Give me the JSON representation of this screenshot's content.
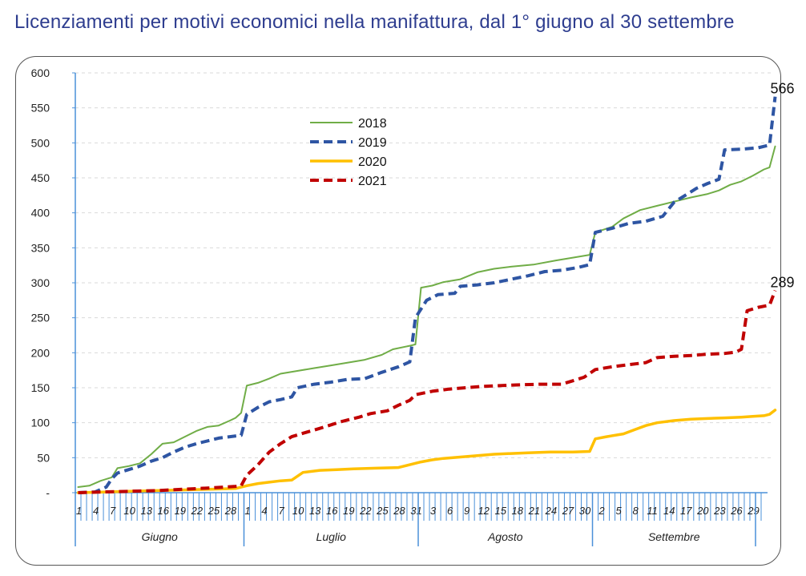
{
  "title": "Licenziamenti per motivi economici nella manifattura, dal 1° giugno al 30 settembre",
  "chart_data": {
    "type": "line",
    "title": "Licenziamenti per motivi economici nella manifattura, dal 1° giugno al 30 settembre",
    "xlabel": "",
    "ylabel": "",
    "ylim": [
      0,
      600
    ],
    "grid": true,
    "legend_position": "top-center",
    "y_ticks": [
      "-",
      "50",
      "100",
      "150",
      "200",
      "250",
      "300",
      "350",
      "400",
      "450",
      "500",
      "550",
      "600"
    ],
    "months": [
      {
        "name": "Giugno",
        "days": [
          "1",
          "4",
          "7",
          "10",
          "13",
          "16",
          "19",
          "22",
          "25",
          "28"
        ],
        "start_day": 1,
        "length": 30
      },
      {
        "name": "Luglio",
        "days": [
          "1",
          "4",
          "7",
          "10",
          "13",
          "16",
          "19",
          "22",
          "25",
          "28",
          "31"
        ],
        "start_day": 31,
        "length": 31
      },
      {
        "name": "Agosto",
        "days": [
          "3",
          "6",
          "9",
          "12",
          "15",
          "18",
          "21",
          "24",
          "27",
          "30"
        ],
        "start_day": 62,
        "length": 31
      },
      {
        "name": "Settembre",
        "days": [
          "2",
          "5",
          "8",
          "11",
          "14",
          "17",
          "20",
          "23",
          "26",
          "29"
        ],
        "start_day": 93,
        "length": 29
      }
    ],
    "series": [
      {
        "name": "2018",
        "color": "#70ad47",
        "dash": "solid",
        "points": [
          [
            1,
            8
          ],
          [
            3,
            10
          ],
          [
            5,
            17
          ],
          [
            7,
            22
          ],
          [
            8,
            35
          ],
          [
            10,
            38
          ],
          [
            12,
            42
          ],
          [
            14,
            55
          ],
          [
            16,
            70
          ],
          [
            18,
            72
          ],
          [
            20,
            80
          ],
          [
            22,
            88
          ],
          [
            24,
            94
          ],
          [
            26,
            96
          ],
          [
            28,
            103
          ],
          [
            29,
            107
          ],
          [
            30,
            114
          ],
          [
            31,
            153
          ],
          [
            33,
            157
          ],
          [
            35,
            163
          ],
          [
            37,
            170
          ],
          [
            40,
            174
          ],
          [
            43,
            178
          ],
          [
            46,
            182
          ],
          [
            49,
            186
          ],
          [
            52,
            190
          ],
          [
            55,
            197
          ],
          [
            57,
            205
          ],
          [
            60,
            210
          ],
          [
            61,
            212
          ],
          [
            62,
            293
          ],
          [
            64,
            296
          ],
          [
            66,
            301
          ],
          [
            69,
            305
          ],
          [
            72,
            315
          ],
          [
            75,
            320
          ],
          [
            78,
            323
          ],
          [
            82,
            326
          ],
          [
            86,
            332
          ],
          [
            89,
            336
          ],
          [
            92,
            340
          ],
          [
            93,
            372
          ],
          [
            96,
            380
          ],
          [
            98,
            392
          ],
          [
            101,
            404
          ],
          [
            104,
            410
          ],
          [
            107,
            416
          ],
          [
            110,
            422
          ],
          [
            113,
            427
          ],
          [
            115,
            432
          ],
          [
            117,
            440
          ],
          [
            119,
            445
          ],
          [
            121,
            453
          ],
          [
            123,
            462
          ],
          [
            124,
            465
          ],
          [
            125,
            495
          ]
        ]
      },
      {
        "name": "2019",
        "color": "#2e55a3",
        "dash": "dashed",
        "points": [
          [
            1,
            0
          ],
          [
            4,
            1
          ],
          [
            6,
            8
          ],
          [
            7,
            20
          ],
          [
            8,
            28
          ],
          [
            10,
            33
          ],
          [
            12,
            38
          ],
          [
            14,
            45
          ],
          [
            16,
            50
          ],
          [
            18,
            58
          ],
          [
            20,
            65
          ],
          [
            22,
            70
          ],
          [
            24,
            74
          ],
          [
            26,
            78
          ],
          [
            28,
            80
          ],
          [
            30,
            82
          ],
          [
            31,
            112
          ],
          [
            33,
            122
          ],
          [
            35,
            130
          ],
          [
            37,
            133
          ],
          [
            39,
            137
          ],
          [
            40,
            150
          ],
          [
            43,
            155
          ],
          [
            46,
            158
          ],
          [
            49,
            162
          ],
          [
            52,
            163
          ],
          [
            55,
            172
          ],
          [
            58,
            180
          ],
          [
            60,
            187
          ],
          [
            61,
            250
          ],
          [
            63,
            275
          ],
          [
            65,
            283
          ],
          [
            68,
            285
          ],
          [
            69,
            295
          ],
          [
            72,
            297
          ],
          [
            75,
            300
          ],
          [
            78,
            305
          ],
          [
            81,
            310
          ],
          [
            84,
            316
          ],
          [
            87,
            318
          ],
          [
            90,
            322
          ],
          [
            92,
            326
          ],
          [
            93,
            372
          ],
          [
            96,
            378
          ],
          [
            99,
            385
          ],
          [
            102,
            388
          ],
          [
            105,
            395
          ],
          [
            107,
            415
          ],
          [
            109,
            425
          ],
          [
            111,
            435
          ],
          [
            113,
            442
          ],
          [
            115,
            448
          ],
          [
            116,
            490
          ],
          [
            119,
            491
          ],
          [
            122,
            493
          ],
          [
            124,
            497
          ],
          [
            125,
            566
          ]
        ]
      },
      {
        "name": "2020",
        "color": "#ffc000",
        "dash": "solid",
        "points": [
          [
            1,
            0
          ],
          [
            6,
            1
          ],
          [
            10,
            2
          ],
          [
            15,
            3
          ],
          [
            20,
            4
          ],
          [
            25,
            5
          ],
          [
            29,
            6
          ],
          [
            31,
            10
          ],
          [
            33,
            13
          ],
          [
            35,
            15
          ],
          [
            37,
            17
          ],
          [
            39,
            18
          ],
          [
            41,
            29
          ],
          [
            44,
            32
          ],
          [
            47,
            33
          ],
          [
            50,
            34
          ],
          [
            54,
            35
          ],
          [
            58,
            36
          ],
          [
            60,
            40
          ],
          [
            62,
            44
          ],
          [
            64,
            47
          ],
          [
            66,
            49
          ],
          [
            69,
            51
          ],
          [
            72,
            53
          ],
          [
            75,
            55
          ],
          [
            78,
            56
          ],
          [
            81,
            57
          ],
          [
            85,
            58
          ],
          [
            89,
            58
          ],
          [
            92,
            59
          ],
          [
            93,
            77
          ],
          [
            95,
            80
          ],
          [
            98,
            84
          ],
          [
            100,
            90
          ],
          [
            102,
            96
          ],
          [
            104,
            100
          ],
          [
            107,
            103
          ],
          [
            110,
            105
          ],
          [
            113,
            106
          ],
          [
            116,
            107
          ],
          [
            119,
            108
          ],
          [
            121,
            109
          ],
          [
            123,
            110
          ],
          [
            124,
            112
          ],
          [
            125,
            118
          ]
        ]
      },
      {
        "name": "2021",
        "color": "#c00000",
        "dash": "dashed",
        "points": [
          [
            1,
            0
          ],
          [
            5,
            1
          ],
          [
            10,
            2
          ],
          [
            15,
            3
          ],
          [
            20,
            5
          ],
          [
            25,
            7
          ],
          [
            29,
            9
          ],
          [
            30,
            10
          ],
          [
            31,
            25
          ],
          [
            33,
            40
          ],
          [
            35,
            58
          ],
          [
            37,
            70
          ],
          [
            39,
            80
          ],
          [
            41,
            85
          ],
          [
            44,
            92
          ],
          [
            46,
            97
          ],
          [
            48,
            102
          ],
          [
            51,
            108
          ],
          [
            53,
            113
          ],
          [
            56,
            117
          ],
          [
            58,
            125
          ],
          [
            60,
            132
          ],
          [
            61,
            140
          ],
          [
            64,
            145
          ],
          [
            67,
            148
          ],
          [
            70,
            150
          ],
          [
            73,
            152
          ],
          [
            76,
            153
          ],
          [
            79,
            154
          ],
          [
            83,
            155
          ],
          [
            87,
            155
          ],
          [
            89,
            160
          ],
          [
            91,
            165
          ],
          [
            93,
            176
          ],
          [
            96,
            180
          ],
          [
            99,
            183
          ],
          [
            102,
            186
          ],
          [
            104,
            193
          ],
          [
            107,
            195
          ],
          [
            110,
            196
          ],
          [
            113,
            198
          ],
          [
            116,
            199
          ],
          [
            118,
            201
          ],
          [
            119,
            205
          ],
          [
            120,
            260
          ],
          [
            122,
            265
          ],
          [
            124,
            268
          ],
          [
            125,
            289
          ]
        ]
      }
    ],
    "annotations": [
      {
        "series": "2019",
        "text": "566"
      },
      {
        "series": "2021",
        "text": "289"
      }
    ]
  }
}
